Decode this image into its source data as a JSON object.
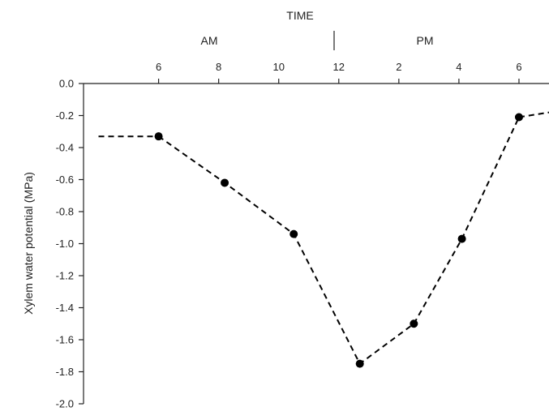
{
  "chart_data": {
    "type": "line",
    "title": "",
    "xlabel": "TIME",
    "ylabel": "Xylem water potential (MPa)",
    "period_labels": [
      "AM",
      "PM"
    ],
    "x_tick_labels": [
      "6",
      "8",
      "10",
      "12",
      "2",
      "4",
      "6"
    ],
    "x_tick_hours": [
      6,
      8,
      10,
      12,
      14,
      16,
      18
    ],
    "y_tick_labels": [
      "0.0",
      "-0.2",
      "-0.4",
      "-0.6",
      "-0.8",
      "-1.0",
      "-1.2",
      "-1.4",
      "-1.6",
      "-1.8",
      "-2.0"
    ],
    "ylim": [
      -2.0,
      0.0
    ],
    "xlim_hours": [
      3.5,
      19.0
    ],
    "series": [
      {
        "x": [
          6.0,
          8.2,
          10.5,
          12.7,
          14.5,
          16.1,
          18.0
        ],
        "values": [
          -0.33,
          -0.62,
          -0.94,
          -1.75,
          -1.5,
          -0.97,
          -0.21
        ],
        "leading_dash": {
          "x": [
            4.0,
            6.0
          ],
          "values": [
            -0.33,
            -0.33
          ]
        },
        "trailing_dash": {
          "x": [
            18.0,
            19.0
          ],
          "values": [
            -0.21,
            -0.18
          ]
        }
      }
    ],
    "grid": false,
    "legend": "none",
    "colors": {
      "line": "#000000",
      "axis": "#222222"
    }
  }
}
